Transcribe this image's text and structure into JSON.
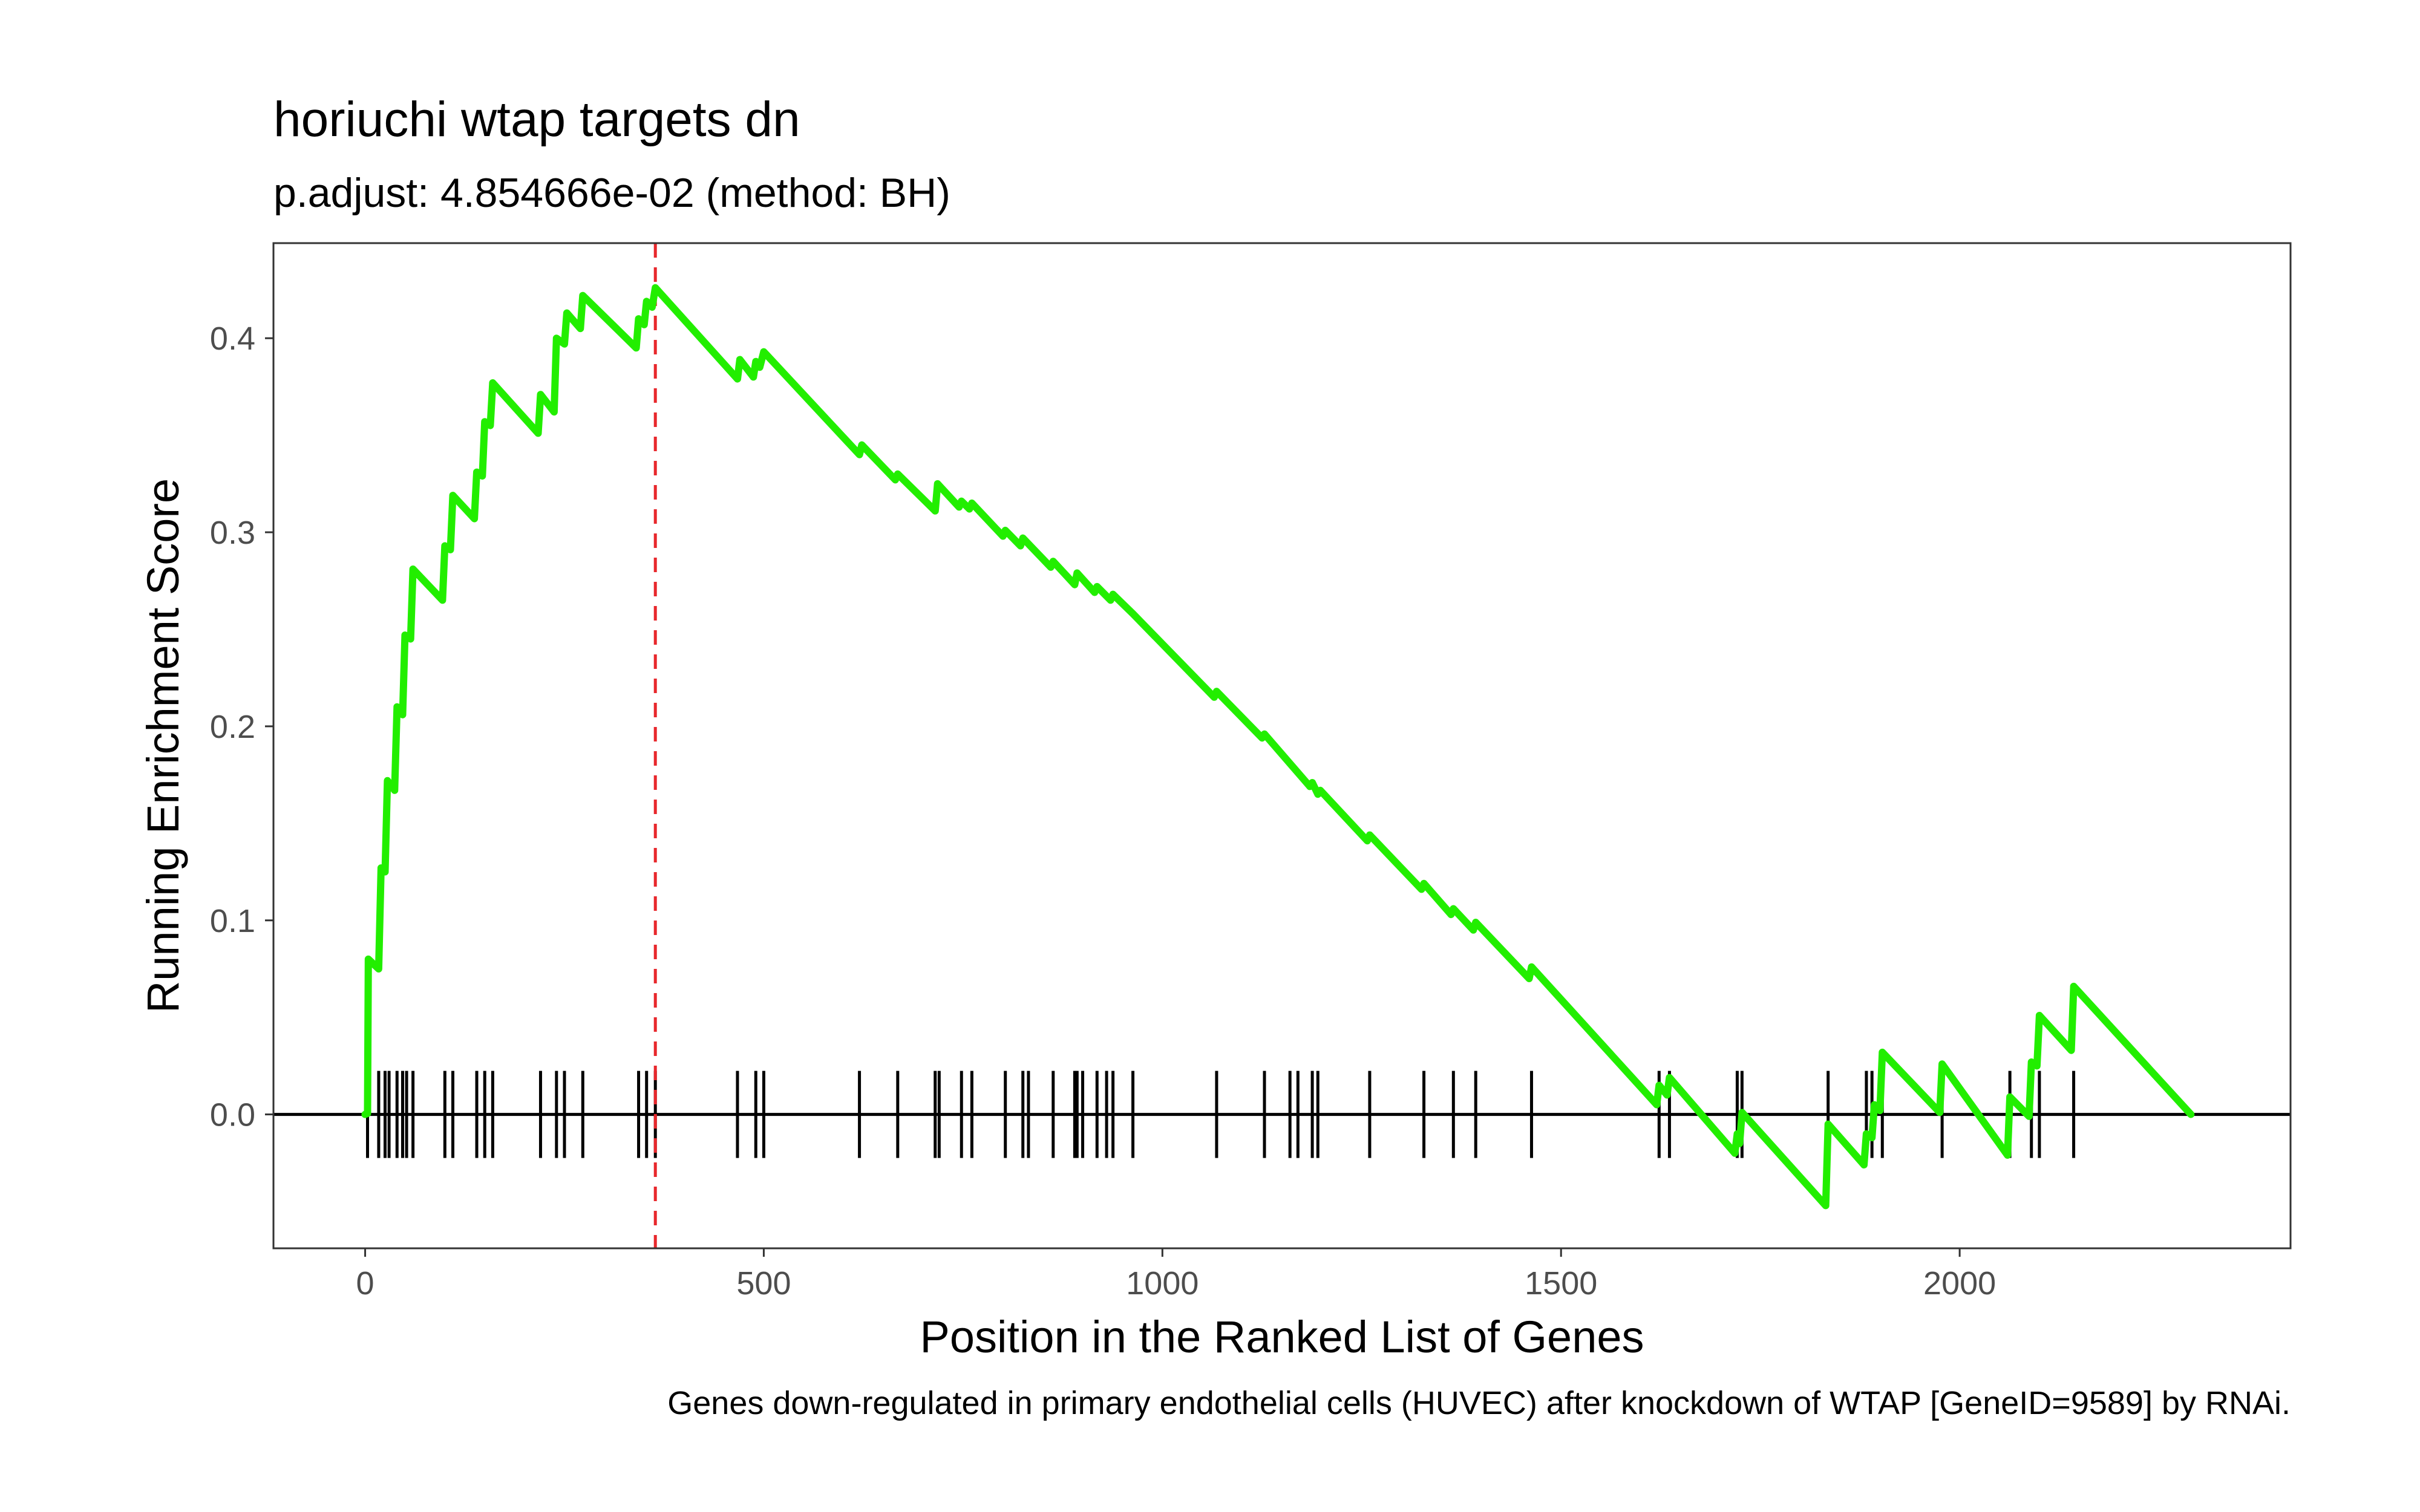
{
  "chart_data": {
    "type": "line",
    "title": "horiuchi wtap targets dn",
    "subtitle": "p.adjust: 4.854666e-02 (method: BH)",
    "xlabel": "Position in the Ranked List of Genes",
    "ylabel": "Running Enrichment Score",
    "caption": "Genes down-regulated in primary endothelial cells (HUVEC) after knockdown of WTAP [GeneID=9589] by RNAi.",
    "xlim": [
      -115,
      2415
    ],
    "ylim": [
      -0.069,
      0.449
    ],
    "x_ticks": [
      0,
      500,
      1000,
      1500,
      2000
    ],
    "y_ticks": [
      0.0,
      0.1,
      0.2,
      0.3,
      0.4
    ],
    "grid": false,
    "colors": {
      "line": "#22ee00",
      "peak_marker": "#e8272c",
      "hits": "#000000",
      "zero_line": "#000000",
      "panel_border": "#333333",
      "tick_text": "#4d4d4d"
    },
    "peak_position": 364,
    "zero_line": 0,
    "series": [
      {
        "values": [
          [
            0,
            0
          ],
          [
            3,
            0.0005
          ],
          [
            4,
            0.08
          ],
          [
            17,
            0.075
          ],
          [
            20,
            0.127
          ],
          [
            25,
            0.125
          ],
          [
            28,
            0.172
          ],
          [
            37,
            0.167
          ],
          [
            40,
            0.21
          ],
          [
            47,
            0.206
          ],
          [
            50,
            0.247
          ],
          [
            57,
            0.245
          ],
          [
            60,
            0.281
          ],
          [
            97,
            0.265
          ],
          [
            100,
            0.293
          ],
          [
            107,
            0.291
          ],
          [
            110,
            0.319
          ],
          [
            137,
            0.307
          ],
          [
            140,
            0.331
          ],
          [
            147,
            0.329
          ],
          [
            150,
            0.357
          ],
          [
            157,
            0.355
          ],
          [
            160,
            0.377
          ],
          [
            217,
            0.351
          ],
          [
            220,
            0.371
          ],
          [
            237,
            0.362
          ],
          [
            240,
            0.4
          ],
          [
            250,
            0.397
          ],
          [
            253,
            0.413
          ],
          [
            270,
            0.405
          ],
          [
            273,
            0.422
          ],
          [
            340,
            0.395
          ],
          [
            343,
            0.41
          ],
          [
            350,
            0.407
          ],
          [
            353,
            0.419
          ],
          [
            360,
            0.416
          ],
          [
            364,
            0.426
          ],
          [
            467,
            0.379
          ],
          [
            470,
            0.389
          ],
          [
            487,
            0.38
          ],
          [
            490,
            0.388
          ],
          [
            495,
            0.385
          ],
          [
            500,
            0.393
          ],
          [
            620,
            0.34
          ],
          [
            623,
            0.345
          ],
          [
            665,
            0.327
          ],
          [
            668,
            0.33
          ],
          [
            715,
            0.311
          ],
          [
            718,
            0.325
          ],
          [
            745,
            0.313
          ],
          [
            748,
            0.316
          ],
          [
            758,
            0.312
          ],
          [
            761,
            0.315
          ],
          [
            800,
            0.298
          ],
          [
            803,
            0.301
          ],
          [
            822,
            0.293
          ],
          [
            825,
            0.297
          ],
          [
            860,
            0.282
          ],
          [
            863,
            0.285
          ],
          [
            890,
            0.273
          ],
          [
            893,
            0.279
          ],
          [
            915,
            0.269
          ],
          [
            918,
            0.272
          ],
          [
            935,
            0.265
          ],
          [
            938,
            0.268
          ],
          [
            963,
            0.258
          ],
          [
            1065,
            0.215
          ],
          [
            1068,
            0.218
          ],
          [
            1125,
            0.194
          ],
          [
            1128,
            0.196
          ],
          [
            1185,
            0.169
          ],
          [
            1188,
            0.171
          ],
          [
            1195,
            0.165
          ],
          [
            1198,
            0.167
          ],
          [
            1257,
            0.141
          ],
          [
            1260,
            0.144
          ],
          [
            1325,
            0.116
          ],
          [
            1328,
            0.119
          ],
          [
            1362,
            0.103
          ],
          [
            1365,
            0.106
          ],
          [
            1390,
            0.095
          ],
          [
            1393,
            0.099
          ],
          [
            1460,
            0.07
          ],
          [
            1463,
            0.076
          ],
          [
            1620,
            0.005
          ],
          [
            1623,
            0.015
          ],
          [
            1633,
            0.01
          ],
          [
            1636,
            0.019
          ],
          [
            1718,
            -0.02
          ],
          [
            1721,
            -0.01
          ],
          [
            1724,
            -0.015
          ],
          [
            1727,
            0.001
          ],
          [
            1832,
            -0.047
          ],
          [
            1835,
            -0.005
          ],
          [
            1880,
            -0.026
          ],
          [
            1883,
            -0.01
          ],
          [
            1890,
            -0.012
          ],
          [
            1893,
            0.005
          ],
          [
            1900,
            0.002
          ],
          [
            1903,
            0.032
          ],
          [
            1975,
            0.001
          ],
          [
            1978,
            0.026
          ],
          [
            2060,
            -0.021
          ],
          [
            2063,
            0.009
          ],
          [
            2087,
            -0.001
          ],
          [
            2090,
            0.027
          ],
          [
            2097,
            0.025
          ],
          [
            2100,
            0.051
          ],
          [
            2140,
            0.033
          ],
          [
            2143,
            0.066
          ],
          [
            2290,
            0
          ]
        ]
      }
    ],
    "hits": [
      3,
      17,
      25,
      30,
      40,
      47,
      52,
      60,
      100,
      110,
      140,
      150,
      160,
      220,
      240,
      250,
      273,
      343,
      353,
      364,
      467,
      490,
      500,
      620,
      668,
      715,
      720,
      748,
      761,
      803,
      825,
      832,
      863,
      890,
      893,
      900,
      918,
      930,
      938,
      963,
      1068,
      1128,
      1160,
      1170,
      1188,
      1195,
      1260,
      1328,
      1365,
      1393,
      1463,
      1623,
      1636,
      1721,
      1727,
      1835,
      1883,
      1890,
      1903,
      1978,
      2063,
      2090,
      2100,
      2143
    ]
  }
}
